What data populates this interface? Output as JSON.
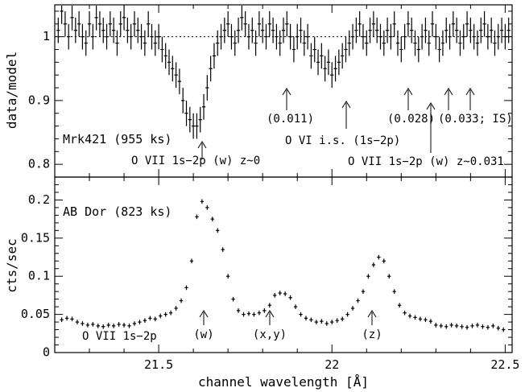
{
  "chart_data": [
    {
      "type": "scatter",
      "panel": "top",
      "ylabel": "data/model",
      "ylim": [
        0.78,
        1.05
      ],
      "xlim": [
        21.2,
        22.52
      ],
      "reference_line": 1.0,
      "xticks": [
        21.5,
        22,
        22.5
      ],
      "yticks": [
        0.8,
        0.9,
        1
      ],
      "ytick_labels": [
        "0.8",
        "0.9",
        "1"
      ],
      "label": "Mrk421 (955 ks)",
      "annotations": [
        {
          "text": "O VII 1s−2p (w) z~0",
          "x": 21.6
        },
        {
          "text": "O VI i.s. (1s−2p)",
          "x": 22.02
        },
        {
          "text": "O VII 1s−2p (w) z~0.031",
          "x": 22.27
        },
        {
          "text": "(0.011)",
          "x": 21.84
        },
        {
          "text": "(0.028)",
          "x": 22.2
        },
        {
          "text": "(0.033; IS)",
          "x": 22.34
        }
      ],
      "x": [
        21.21,
        21.22,
        21.23,
        21.24,
        21.25,
        21.26,
        21.27,
        21.28,
        21.29,
        21.3,
        21.31,
        21.32,
        21.33,
        21.34,
        21.35,
        21.36,
        21.37,
        21.38,
        21.39,
        21.4,
        21.41,
        21.42,
        21.43,
        21.44,
        21.45,
        21.46,
        21.47,
        21.48,
        21.49,
        21.5,
        21.51,
        21.52,
        21.53,
        21.54,
        21.55,
        21.56,
        21.57,
        21.58,
        21.59,
        21.6,
        21.61,
        21.62,
        21.63,
        21.64,
        21.65,
        21.66,
        21.67,
        21.68,
        21.69,
        21.7,
        21.71,
        21.72,
        21.73,
        21.74,
        21.75,
        21.76,
        21.77,
        21.78,
        21.79,
        21.8,
        21.81,
        21.82,
        21.83,
        21.84,
        21.85,
        21.86,
        21.87,
        21.88,
        21.89,
        21.9,
        21.91,
        21.92,
        21.93,
        21.94,
        21.95,
        21.96,
        21.97,
        21.98,
        21.99,
        22.0,
        22.01,
        22.02,
        22.03,
        22.04,
        22.05,
        22.06,
        22.07,
        22.08,
        22.09,
        22.1,
        22.11,
        22.12,
        22.13,
        22.14,
        22.15,
        22.16,
        22.17,
        22.18,
        22.19,
        22.2,
        22.21,
        22.22,
        22.23,
        22.24,
        22.25,
        22.26,
        22.27,
        22.28,
        22.29,
        22.3,
        22.31,
        22.32,
        22.33,
        22.34,
        22.35,
        22.36,
        22.37,
        22.38,
        22.39,
        22.4,
        22.41,
        22.42,
        22.43,
        22.44,
        22.45,
        22.46,
        22.47,
        22.48,
        22.49,
        22.5,
        22.51
      ],
      "y": [
        1.01,
        1.04,
        1.02,
        1.0,
        1.03,
        1.01,
        1.02,
        1.0,
        0.99,
        1.02,
        1.0,
        1.03,
        1.02,
        1.01,
        1.0,
        1.02,
        1.01,
        0.99,
        1.02,
        1.03,
        1.01,
        1.0,
        1.02,
        1.01,
        1.0,
        0.99,
        1.02,
        1.0,
        0.99,
        1.0,
        0.98,
        0.97,
        0.96,
        0.95,
        0.94,
        0.93,
        0.9,
        0.88,
        0.87,
        0.86,
        0.86,
        0.87,
        0.89,
        0.92,
        0.95,
        0.97,
        0.99,
        1.0,
        1.01,
        1.02,
        1.0,
        0.99,
        1.01,
        1.03,
        1.02,
        1.0,
        1.01,
        0.99,
        1.02,
        1.01,
        1.0,
        1.02,
        1.01,
        1.0,
        0.99,
        1.01,
        1.02,
        1.0,
        0.98,
        1.0,
        1.01,
        0.99,
        1.0,
        0.97,
        0.98,
        0.96,
        0.97,
        0.95,
        0.96,
        0.94,
        0.95,
        0.96,
        0.97,
        0.98,
        0.99,
        1.0,
        1.01,
        1.02,
        1.0,
        0.99,
        1.01,
        1.02,
        1.01,
        1.0,
        0.99,
        1.01,
        1.0,
        1.02,
        0.99,
        0.98,
        1.0,
        1.02,
        1.01,
        0.99,
        0.98,
        1.0,
        1.01,
        0.99,
        1.02,
        1.0,
        0.98,
        0.99,
        1.01,
        1.0,
        1.02,
        1.01,
        0.99,
        1.0,
        1.02,
        1.01,
        1.0,
        0.99,
        1.01,
        1.02,
        1.0,
        1.01,
        0.99,
        1.0,
        1.01,
        1.0,
        1.01
      ],
      "yerr": 0.02
    },
    {
      "type": "scatter",
      "panel": "bottom",
      "ylabel": "cts/sec",
      "xlabel": "channel wavelength [Å]",
      "ylim": [
        0,
        0.23
      ],
      "xlim": [
        21.2,
        22.52
      ],
      "xticks": [
        21.5,
        22,
        22.5
      ],
      "xtick_labels": [
        "21.5",
        "22",
        "22.5"
      ],
      "yticks": [
        0,
        0.05,
        0.1,
        0.15,
        0.2
      ],
      "ytick_labels": [
        "0",
        "0.05",
        "0.1",
        "0.15",
        "0.2"
      ],
      "label": "AB Dor (823 ks)",
      "annotations": [
        {
          "text": "O VII 1s−2p",
          "x": 21.33
        },
        {
          "text": "(w)",
          "x": 21.6
        },
        {
          "text": "(x,y)",
          "x": 21.8
        },
        {
          "text": "(z)",
          "x": 22.1
        }
      ],
      "x": [
        21.22,
        21.235,
        21.25,
        21.265,
        21.28,
        21.295,
        21.31,
        21.325,
        21.34,
        21.355,
        21.37,
        21.385,
        21.4,
        21.415,
        21.43,
        21.445,
        21.46,
        21.475,
        21.49,
        21.505,
        21.52,
        21.535,
        21.55,
        21.565,
        21.58,
        21.595,
        21.61,
        21.625,
        21.64,
        21.655,
        21.67,
        21.685,
        21.7,
        21.715,
        21.73,
        21.745,
        21.76,
        21.775,
        21.79,
        21.805,
        21.82,
        21.835,
        21.85,
        21.865,
        21.88,
        21.895,
        21.91,
        21.925,
        21.94,
        21.955,
        21.97,
        21.985,
        22.0,
        22.015,
        22.03,
        22.045,
        22.06,
        22.075,
        22.09,
        22.105,
        22.12,
        22.135,
        22.15,
        22.165,
        22.18,
        22.195,
        22.21,
        22.225,
        22.24,
        22.255,
        22.27,
        22.285,
        22.3,
        22.315,
        22.33,
        22.345,
        22.36,
        22.375,
        22.39,
        22.405,
        22.42,
        22.435,
        22.45,
        22.465,
        22.48,
        22.495
      ],
      "y": [
        0.043,
        0.045,
        0.044,
        0.04,
        0.038,
        0.036,
        0.037,
        0.035,
        0.034,
        0.036,
        0.035,
        0.037,
        0.036,
        0.035,
        0.038,
        0.04,
        0.042,
        0.045,
        0.044,
        0.048,
        0.05,
        0.052,
        0.058,
        0.068,
        0.085,
        0.12,
        0.178,
        0.198,
        0.19,
        0.175,
        0.16,
        0.135,
        0.1,
        0.07,
        0.055,
        0.05,
        0.051,
        0.05,
        0.052,
        0.055,
        0.062,
        0.075,
        0.078,
        0.077,
        0.072,
        0.06,
        0.05,
        0.045,
        0.043,
        0.04,
        0.041,
        0.038,
        0.04,
        0.042,
        0.044,
        0.05,
        0.058,
        0.068,
        0.08,
        0.1,
        0.115,
        0.125,
        0.12,
        0.1,
        0.08,
        0.062,
        0.052,
        0.048,
        0.046,
        0.044,
        0.043,
        0.041,
        0.036,
        0.035,
        0.034,
        0.036,
        0.035,
        0.034,
        0.033,
        0.035,
        0.036,
        0.034,
        0.033,
        0.035,
        0.032,
        0.03
      ],
      "yerr": 0.003
    }
  ]
}
